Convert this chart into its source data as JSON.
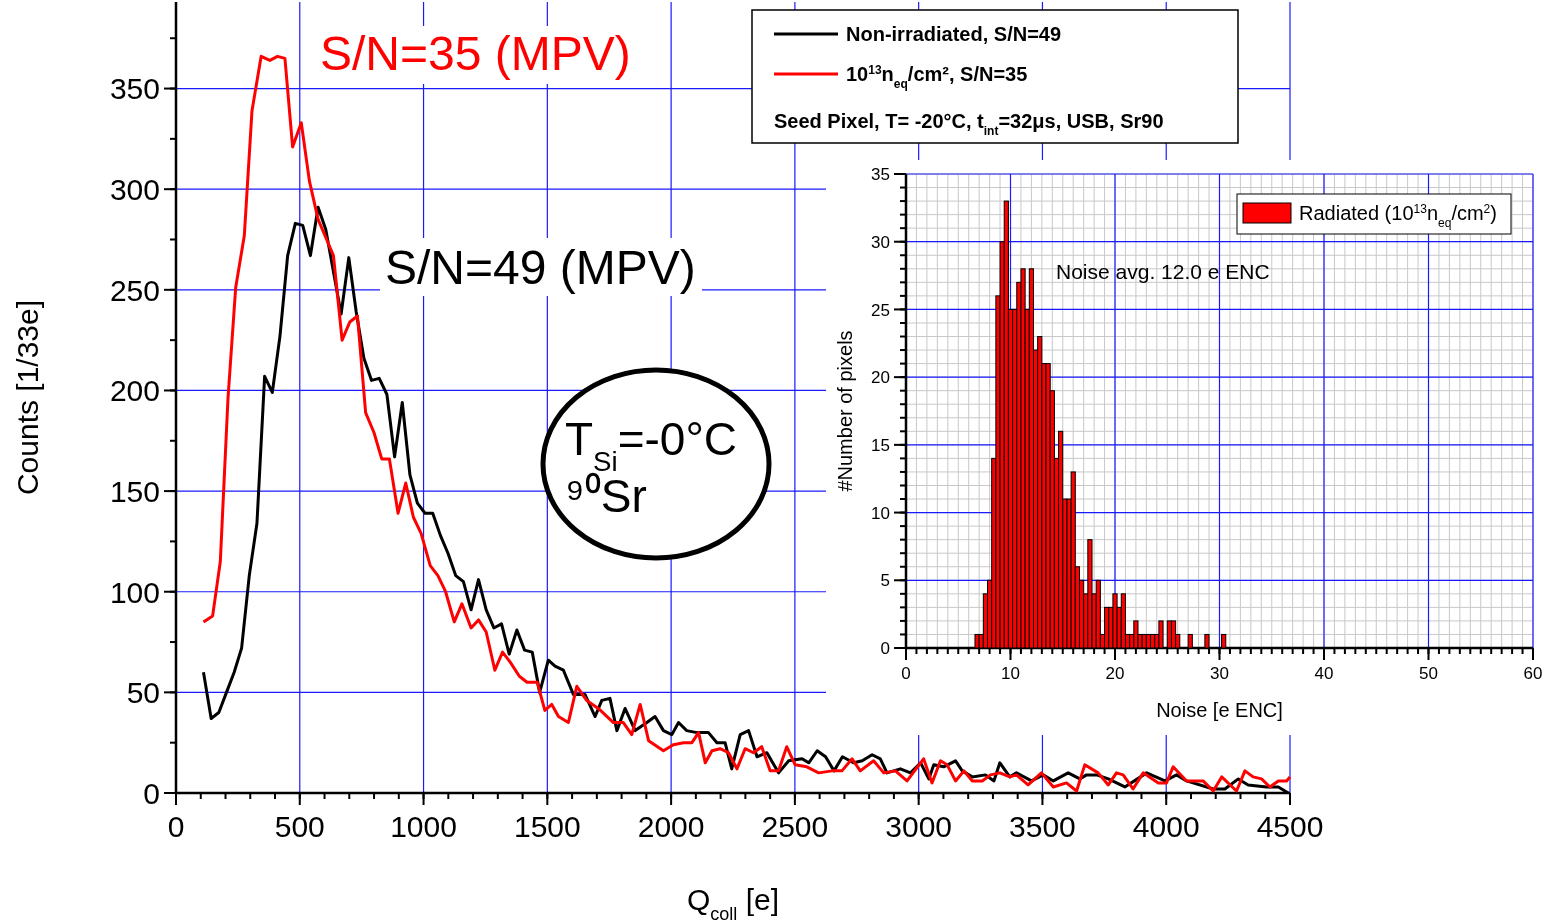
{
  "chart_data": [
    {
      "type": "line",
      "xlabel": "Q$_{coll}$ [e]",
      "ylabel": "Counts [1/33e]",
      "xlim": [
        0,
        4500
      ],
      "ylim": [
        0,
        393
      ],
      "xticks": [
        0,
        500,
        1000,
        1500,
        2000,
        2500,
        3000,
        3500,
        4000,
        4500
      ],
      "yticks": [
        0,
        50,
        100,
        150,
        200,
        250,
        300,
        350
      ],
      "grid": true,
      "legend": "top right",
      "legend_title": "Seed Pixel, T= -20°C, t$_{int}$=32μs, USB, Sr90",
      "annotations": [
        "S/N=35 (MPV)",
        "S/N=49 (MPV)",
        "T$_{Si}$=-0°C",
        "⁹⁰Sr"
      ],
      "series": [
        {
          "name": "Non-irradiated, S/N=49",
          "color": "#000000",
          "x": [
            111,
            142,
            173,
            204,
            235,
            265,
            296,
            327,
            358,
            389,
            420,
            451,
            482,
            512,
            543,
            574,
            605,
            636,
            667,
            698,
            728,
            759,
            790,
            821,
            852,
            883,
            914,
            945,
            975,
            1006,
            1037,
            1068,
            1099,
            1130,
            1161,
            1192,
            1222,
            1253,
            1284,
            1315,
            1346,
            1377,
            1408,
            1439,
            1469,
            1504,
            1531,
            1565,
            1605,
            1652,
            1693,
            1720,
            1753,
            1781,
            1814,
            1855,
            1902,
            1935,
            1969,
            2003,
            2030,
            2063,
            2104,
            2151,
            2185,
            2218,
            2245,
            2279,
            2313,
            2347,
            2387,
            2434,
            2475,
            2529,
            2556,
            2590,
            2624,
            2658,
            2692,
            2738,
            2772,
            2812,
            2845,
            2872,
            2926,
            2967,
            3008,
            3041,
            3061,
            3101,
            3149,
            3176,
            3216,
            3270,
            3304,
            3328,
            3368,
            3395,
            3456,
            3503,
            3544,
            3604,
            3651,
            3678,
            3719,
            3766,
            3833,
            3921,
            3995,
            4042,
            4082,
            4190,
            4237,
            4291,
            4331,
            4405,
            4453,
            4493
          ],
          "values": [
            60,
            37,
            40,
            50,
            60,
            72,
            108,
            134,
            207,
            199,
            227,
            267,
            283,
            282,
            267,
            291,
            280,
            259,
            238,
            266,
            239,
            216,
            205,
            206,
            198,
            167,
            194,
            158,
            144,
            139,
            139,
            128,
            119,
            108,
            105,
            91,
            106,
            91,
            82,
            84,
            69,
            81,
            71,
            70,
            50,
            66,
            63,
            61,
            49,
            49,
            38,
            46,
            47,
            31,
            42,
            31,
            35,
            38,
            31,
            29,
            35,
            31,
            30,
            30,
            25,
            25,
            12,
            29,
            31,
            18,
            20,
            10,
            16,
            17,
            15,
            21,
            18,
            11,
            18,
            15,
            16,
            19,
            17,
            10,
            12,
            10,
            15,
            7,
            14,
            13,
            16,
            11,
            8,
            9,
            6,
            15,
            8,
            10,
            6,
            9,
            6,
            10,
            7,
            9,
            9,
            7,
            3,
            10,
            6,
            9,
            6,
            2,
            2,
            7,
            4,
            3,
            3,
            0
          ]
        },
        {
          "name": "10$^{13}$n$_{eq}$/cm², S/N=35",
          "color": "#ff0000",
          "x": [
            111,
            148,
            179,
            210,
            241,
            276,
            307,
            344,
            379,
            410,
            440,
            471,
            506,
            539,
            574,
            605,
            636,
            671,
            702,
            733,
            766,
            800,
            831,
            862,
            897,
            928,
            959,
            990,
            1027,
            1058,
            1089,
            1124,
            1155,
            1192,
            1222,
            1253,
            1288,
            1319,
            1350,
            1387,
            1418,
            1459,
            1490,
            1518,
            1545,
            1585,
            1619,
            1659,
            1706,
            1767,
            1807,
            1841,
            1875,
            1909,
            1969,
            2009,
            2050,
            2084,
            2111,
            2138,
            2165,
            2198,
            2232,
            2266,
            2299,
            2333,
            2366,
            2400,
            2434,
            2467,
            2501,
            2548,
            2596,
            2650,
            2690,
            2731,
            2764,
            2818,
            2859,
            2906,
            2953,
            3020,
            3054,
            3088,
            3115,
            3149,
            3183,
            3216,
            3257,
            3290,
            3328,
            3368,
            3395,
            3442,
            3496,
            3544,
            3597,
            3638,
            3671,
            3725,
            3766,
            3799,
            3826,
            3866,
            3907,
            3968,
            4001,
            4028,
            4082,
            4149,
            4190,
            4224,
            4284,
            4318,
            4351,
            4385,
            4419,
            4453,
            4486,
            4500
          ],
          "values": [
            85,
            88,
            115,
            196,
            251,
            277,
            339,
            366,
            364,
            366,
            365,
            321,
            333,
            304,
            285,
            276,
            267,
            225,
            234,
            237,
            189,
            179,
            166,
            166,
            139,
            154,
            137,
            129,
            113,
            108,
            100,
            85,
            94,
            82,
            86,
            80,
            61,
            70,
            65,
            58,
            55,
            55,
            41,
            44,
            38,
            35,
            53,
            46,
            42,
            35,
            35,
            29,
            44,
            26,
            21,
            24,
            25,
            25,
            30,
            15,
            21,
            22,
            20,
            12,
            22,
            20,
            23,
            11,
            11,
            23,
            14,
            13,
            10,
            11,
            11,
            17,
            11,
            16,
            10,
            11,
            6,
            17,
            5,
            16,
            14,
            6,
            11,
            6,
            6,
            9,
            10,
            8,
            9,
            4,
            10,
            3,
            5,
            1,
            14,
            10,
            4,
            10,
            9,
            2,
            10,
            5,
            5,
            13,
            6,
            6,
            1,
            8,
            1,
            11,
            8,
            7,
            3,
            6,
            6,
            8
          ]
        }
      ]
    },
    {
      "type": "histogram",
      "xlabel": "Noise [e ENC]",
      "ylabel": "#Number of pixels",
      "xlim": [
        0,
        60
      ],
      "ylim": [
        0,
        35
      ],
      "xticks": [
        0,
        10,
        20,
        30,
        40,
        50,
        60
      ],
      "yticks": [
        0,
        5,
        10,
        15,
        20,
        25,
        30,
        35
      ],
      "grid": true,
      "legend": "top right",
      "annotations": [
        "Noise avg. 12.0 e ENC"
      ],
      "bins": [
        6.6,
        7,
        7.4,
        7.8,
        8.2,
        8.6,
        9,
        9.4,
        9.8,
        10.2,
        10.6,
        11,
        11.4,
        11.8,
        12.2,
        12.6,
        13,
        13.4,
        13.8,
        14.2,
        14.6,
        15,
        15.4,
        15.8,
        16.2,
        16.6,
        17,
        17.4,
        17.8,
        18.2,
        18.6,
        19,
        19.4,
        19.8,
        20.2,
        20.6,
        21,
        21.4,
        21.8,
        22.2,
        22.6,
        23,
        23.4,
        23.8,
        24.2,
        24.6,
        25,
        25.4,
        25.8,
        26.2,
        26.6,
        27,
        27.4,
        27.8,
        28.2,
        28.6,
        29,
        29.4,
        29.8,
        30.2,
        30.6
      ],
      "series": [
        {
          "name": "Radiated (10$^{13}$n$_{eq}$/cm$^{2}$)",
          "color": "#ff0000",
          "values": [
            1,
            1,
            4,
            5,
            14,
            26,
            30,
            33,
            25,
            25,
            27,
            28,
            25,
            28,
            22,
            23,
            21,
            21,
            19,
            14,
            16,
            11,
            11,
            13,
            6,
            5,
            4,
            8,
            4,
            5,
            1,
            3,
            3,
            4,
            3,
            4,
            1,
            1,
            2,
            1,
            1,
            1,
            1,
            1,
            2,
            0,
            2,
            2,
            1,
            0,
            0,
            1,
            0,
            0,
            0,
            1,
            0,
            0,
            0,
            1
          ]
        }
      ]
    }
  ]
}
